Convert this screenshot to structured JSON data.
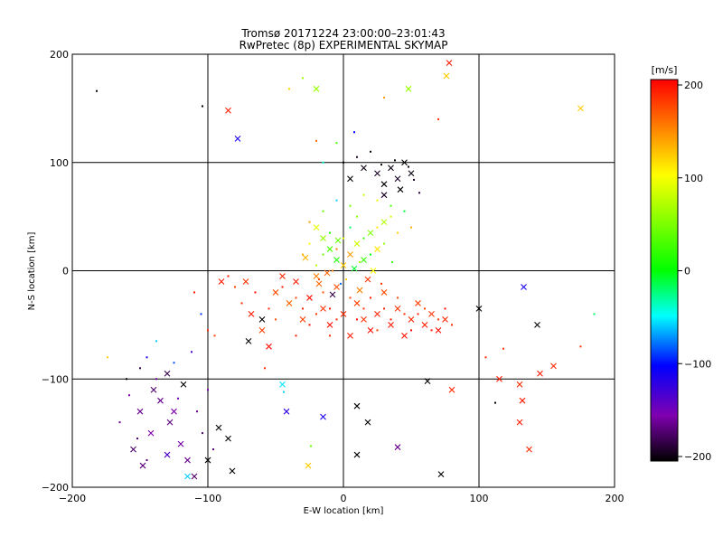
{
  "chart_data": {
    "type": "scatter",
    "title": "Tromsø 20171224 23:00:00–23:01:43",
    "subtitle": "RwPretec (8p) EXPERIMENTAL SKYMAP",
    "xlabel": "E-W location [km]",
    "ylabel": "N-S location [km]",
    "xlim": [
      -200,
      200
    ],
    "ylim": [
      -200,
      200
    ],
    "xticks": [
      "−200",
      "−100",
      "0",
      "100",
      "200"
    ],
    "yticks": [
      "−200",
      "−100",
      "0",
      "100",
      "200"
    ],
    "grid": true,
    "colorbar": {
      "label": "[m/s]",
      "range": [
        -200,
        200
      ],
      "ticks": [
        "200",
        "100",
        "0",
        "−100",
        "−200"
      ]
    },
    "series": [
      {
        "marker": "x",
        "points": [
          [
            -72,
            -10
          ],
          [
            -68,
            -40
          ],
          [
            -60,
            -55
          ],
          [
            -55,
            -70
          ],
          [
            -50,
            -20
          ],
          [
            -45,
            -5
          ],
          [
            -40,
            -30
          ],
          [
            -35,
            -10
          ],
          [
            -30,
            -45
          ],
          [
            -25,
            -25
          ],
          [
            -20,
            -5
          ],
          [
            -15,
            -35
          ],
          [
            -10,
            -50
          ],
          [
            -5,
            -15
          ],
          [
            0,
            -40
          ],
          [
            5,
            -60
          ],
          [
            10,
            -30
          ],
          [
            15,
            -45
          ],
          [
            20,
            -55
          ],
          [
            25,
            -40
          ],
          [
            30,
            -20
          ],
          [
            35,
            -50
          ],
          [
            40,
            -35
          ],
          [
            45,
            -60
          ],
          [
            50,
            -45
          ],
          [
            55,
            -30
          ],
          [
            60,
            -50
          ],
          [
            65,
            -40
          ],
          [
            70,
            -55
          ],
          [
            75,
            -45
          ],
          [
            -20,
            40
          ],
          [
            -15,
            30
          ],
          [
            -10,
            20
          ],
          [
            -5,
            10
          ],
          [
            0,
            5
          ],
          [
            5,
            15
          ],
          [
            10,
            25
          ],
          [
            15,
            10
          ],
          [
            20,
            35
          ],
          [
            25,
            20
          ],
          [
            30,
            45
          ],
          [
            -12,
            -2
          ],
          [
            8,
            2
          ],
          [
            -28,
            12
          ],
          [
            18,
            -8
          ],
          [
            -8,
            -22
          ],
          [
            12,
            -18
          ],
          [
            -18,
            -12
          ],
          [
            -4,
            28
          ],
          [
            22,
            0
          ],
          [
            5,
            85
          ],
          [
            15,
            95
          ],
          [
            25,
            90
          ],
          [
            30,
            80
          ],
          [
            35,
            95
          ],
          [
            40,
            85
          ],
          [
            45,
            100
          ],
          [
            50,
            90
          ],
          [
            30,
            70
          ],
          [
            42,
            75
          ],
          [
            -90,
            -10
          ],
          [
            -85,
            148
          ],
          [
            -78,
            122
          ],
          [
            -130,
            -95
          ],
          [
            -140,
            -110
          ],
          [
            -150,
            -130
          ],
          [
            -155,
            -165
          ],
          [
            -148,
            -180
          ],
          [
            -142,
            -150
          ],
          [
            -135,
            -120
          ],
          [
            -128,
            -140
          ],
          [
            -120,
            -160
          ],
          [
            -115,
            -175
          ],
          [
            -110,
            -190
          ],
          [
            -125,
            -130
          ],
          [
            -118,
            -105
          ],
          [
            -92,
            -145
          ],
          [
            -100,
            -175
          ],
          [
            -85,
            -155
          ],
          [
            -82,
            -185
          ],
          [
            -60,
            -45
          ],
          [
            -42,
            -130
          ],
          [
            -26,
            -180
          ],
          [
            -45,
            -105
          ],
          [
            -15,
            -135
          ],
          [
            10,
            -125
          ],
          [
            18,
            -140
          ],
          [
            10,
            -170
          ],
          [
            40,
            -163
          ],
          [
            72,
            -188
          ],
          [
            62,
            -102
          ],
          [
            80,
            -110
          ],
          [
            115,
            -100
          ],
          [
            130,
            -105
          ],
          [
            132,
            -120
          ],
          [
            130,
            -140
          ],
          [
            137,
            -165
          ],
          [
            145,
            -95
          ],
          [
            155,
            -88
          ],
          [
            143,
            -50
          ],
          [
            133,
            -15
          ],
          [
            100,
            -35
          ],
          [
            48,
            168
          ],
          [
            -20,
            168
          ],
          [
            76,
            180
          ],
          [
            78,
            192
          ],
          [
            175,
            150
          ],
          [
            -70,
            -65
          ],
          [
            -115,
            -190
          ],
          [
            -130,
            -170
          ]
        ],
        "velocities": [
          180,
          190,
          175,
          195,
          170,
          185,
          160,
          190,
          175,
          195,
          150,
          180,
          195,
          170,
          185,
          190,
          175,
          180,
          195,
          185,
          170,
          190,
          180,
          195,
          185,
          175,
          190,
          180,
          195,
          185,
          90,
          60,
          30,
          10,
          120,
          140,
          80,
          20,
          50,
          110,
          70,
          160,
          -10,
          130,
          180,
          -180,
          150,
          160,
          40,
          100,
          -200,
          -195,
          -190,
          -200,
          -195,
          -190,
          -200,
          -195,
          -190,
          -200,
          190,
          190,
          -110,
          -180,
          -170,
          -160,
          -170,
          -165,
          -150,
          -160,
          -165,
          -155,
          -160,
          -170,
          -150,
          -200,
          -200,
          -200,
          -200,
          -200,
          -200,
          -120,
          120,
          -55,
          -110,
          -200,
          -200,
          -200,
          -160,
          -200,
          -200,
          185,
          190,
          185,
          190,
          190,
          185,
          190,
          185,
          -200,
          -110,
          -200,
          60,
          60,
          120,
          190,
          120,
          -200,
          -60,
          -130
        ]
      },
      {
        "marker": "dot",
        "points": [
          [
            -85,
            -5
          ],
          [
            -80,
            -15
          ],
          [
            -75,
            -30
          ],
          [
            -65,
            -20
          ],
          [
            -55,
            -35
          ],
          [
            -50,
            -45
          ],
          [
            -45,
            -15
          ],
          [
            -35,
            -25
          ],
          [
            -30,
            -35
          ],
          [
            -25,
            -50
          ],
          [
            -20,
            -40
          ],
          [
            -15,
            -20
          ],
          [
            -10,
            -35
          ],
          [
            -5,
            -45
          ],
          [
            5,
            -25
          ],
          [
            10,
            -45
          ],
          [
            15,
            -35
          ],
          [
            20,
            -25
          ],
          [
            25,
            -55
          ],
          [
            30,
            -35
          ],
          [
            35,
            -45
          ],
          [
            40,
            -25
          ],
          [
            45,
            -40
          ],
          [
            50,
            -55
          ],
          [
            55,
            -40
          ],
          [
            60,
            -35
          ],
          [
            65,
            -55
          ],
          [
            70,
            -45
          ],
          [
            75,
            -35
          ],
          [
            80,
            -50
          ],
          [
            -30,
            15
          ],
          [
            -25,
            25
          ],
          [
            -20,
            5
          ],
          [
            -15,
            15
          ],
          [
            -10,
            35
          ],
          [
            -5,
            20
          ],
          [
            0,
            30
          ],
          [
            5,
            40
          ],
          [
            10,
            50
          ],
          [
            15,
            30
          ],
          [
            20,
            15
          ],
          [
            25,
            40
          ],
          [
            30,
            25
          ],
          [
            35,
            50
          ],
          [
            40,
            35
          ],
          [
            -25,
            45
          ],
          [
            -15,
            55
          ],
          [
            -5,
            65
          ],
          [
            5,
            60
          ],
          [
            15,
            70
          ],
          [
            25,
            65
          ],
          [
            35,
            60
          ],
          [
            45,
            55
          ],
          [
            50,
            40
          ],
          [
            -8,
            0
          ],
          [
            2,
            -8
          ],
          [
            12,
            8
          ],
          [
            -18,
            -8
          ],
          [
            28,
            -12
          ],
          [
            -2,
            -12
          ],
          [
            0,
            100
          ],
          [
            10,
            105
          ],
          [
            20,
            110
          ],
          [
            28,
            98
          ],
          [
            38,
            102
          ],
          [
            48,
            96
          ],
          [
            52,
            84
          ],
          [
            56,
            72
          ],
          [
            -5,
            118
          ],
          [
            8,
            128
          ],
          [
            -110,
            -20
          ],
          [
            -105,
            -40
          ],
          [
            -100,
            -55
          ],
          [
            -95,
            -60
          ],
          [
            -160,
            -100
          ],
          [
            -150,
            -90
          ],
          [
            -145,
            -80
          ],
          [
            -138,
            -65
          ],
          [
            -125,
            -85
          ],
          [
            -112,
            -75
          ],
          [
            -165,
            -140
          ],
          [
            -158,
            -115
          ],
          [
            -152,
            -155
          ],
          [
            -145,
            -175
          ],
          [
            -138,
            -100
          ],
          [
            -122,
            -118
          ],
          [
            -108,
            -130
          ],
          [
            -104,
            -150
          ],
          [
            -96,
            -165
          ],
          [
            -100,
            -110
          ],
          [
            -182,
            166
          ],
          [
            175,
            -70
          ],
          [
            185,
            -40
          ],
          [
            -20,
            120
          ],
          [
            -40,
            168
          ],
          [
            -30,
            178
          ],
          [
            -15,
            100
          ],
          [
            30,
            160
          ],
          [
            70,
            140
          ],
          [
            105,
            -80
          ],
          [
            -58,
            -90
          ],
          [
            -44,
            -112
          ],
          [
            -24,
            -162
          ],
          [
            112,
            -122
          ],
          [
            118,
            -72
          ],
          [
            -104,
            152
          ],
          [
            -174,
            -80
          ],
          [
            -10,
            -60
          ],
          [
            36,
            8
          ],
          [
            -35,
            -60
          ]
        ],
        "velocities": [
          190,
          175,
          185,
          195,
          180,
          170,
          190,
          175,
          185,
          195,
          180,
          170,
          190,
          185,
          175,
          195,
          180,
          190,
          175,
          185,
          190,
          170,
          180,
          195,
          185,
          175,
          190,
          180,
          195,
          185,
          130,
          100,
          70,
          40,
          10,
          150,
          90,
          -20,
          50,
          20,
          0,
          110,
          60,
          80,
          120,
          140,
          35,
          -60,
          45,
          75,
          95,
          25,
          -10,
          130,
          150,
          120,
          65,
          170,
          180,
          -80,
          -200,
          -190,
          -195,
          -200,
          -200,
          -195,
          -190,
          -180,
          30,
          -100,
          190,
          -90,
          185,
          175,
          -200,
          -180,
          -110,
          -60,
          -85,
          -130,
          -160,
          -150,
          -170,
          -165,
          -155,
          -145,
          -160,
          -170,
          -165,
          -150,
          -200,
          180,
          -20,
          160,
          120,
          60,
          -40,
          140,
          185,
          185,
          185,
          -60,
          40,
          -200,
          180,
          -200,
          120,
          185,
          20,
          190
        ]
      }
    ]
  }
}
